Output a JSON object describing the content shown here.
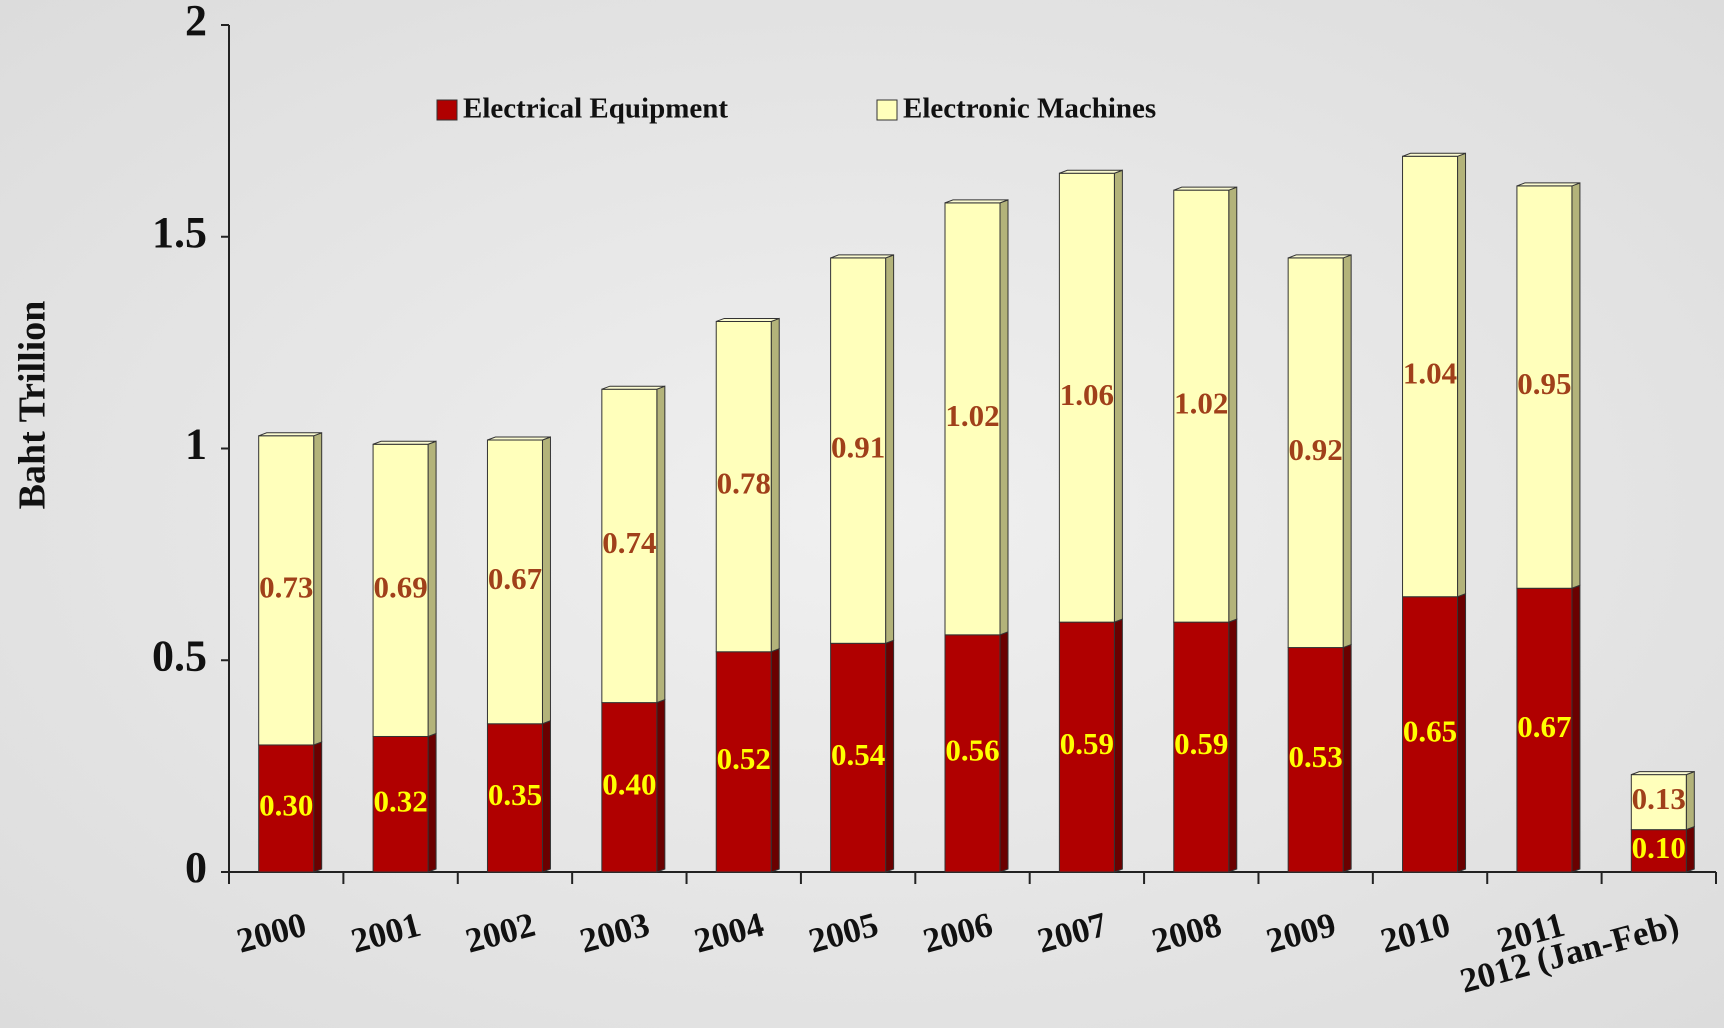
{
  "chart_data": {
    "type": "stacked_bar",
    "y_label": "Baht Trillion",
    "categories": [
      "2000",
      "2001",
      "2002",
      "2003",
      "2004",
      "2005",
      "2006",
      "2007",
      "2008",
      "2009",
      "2010",
      "2011",
      "2012 (Jan-Feb)"
    ],
    "series": [
      {
        "name": "Electrical Equipment",
        "color": "#b00000",
        "values": [
          0.3,
          0.32,
          0.35,
          0.4,
          0.52,
          0.54,
          0.56,
          0.59,
          0.59,
          0.53,
          0.65,
          0.67,
          0.1
        ],
        "value_labels": [
          "0.30",
          "0.32",
          "0.35",
          "0.40",
          "0.52",
          "0.54",
          "0.56",
          "0.59",
          "0.59",
          "0.53",
          "0.65",
          "0.67",
          "0.10"
        ],
        "label_color": "#ffff00"
      },
      {
        "name": "Electronic Machines",
        "color": "#ffffbb",
        "values": [
          0.73,
          0.69,
          0.67,
          0.74,
          0.78,
          0.91,
          1.02,
          1.06,
          1.02,
          0.92,
          1.04,
          0.95,
          0.13
        ],
        "value_labels": [
          "0.73",
          "0.69",
          "0.67",
          "0.74",
          "0.78",
          "0.91",
          "1.02",
          "1.06",
          "1.02",
          "0.92",
          "1.04",
          "0.95",
          "0.13"
        ],
        "label_color": "#a0401a"
      }
    ],
    "ylim": [
      0,
      2
    ],
    "yticks": [
      0,
      0.5,
      1,
      1.5,
      2
    ],
    "legend": "top"
  }
}
